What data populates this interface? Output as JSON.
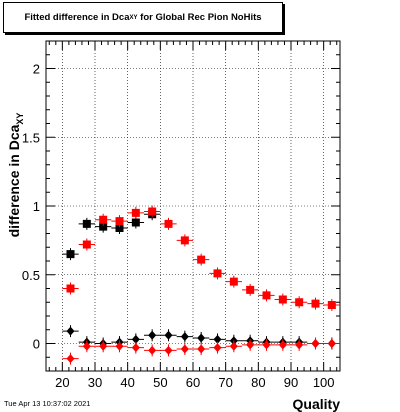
{
  "chart_data": {
    "type": "scatter",
    "title": "Fitted difference in Dca",
    "title_subscript": "XY",
    "title_suffix": " for Global Rec Pion NoHits",
    "xlabel": "Quality",
    "ylabel": "difference in Dca",
    "ylabel_subscript": "XY",
    "xlim": [
      15,
      105
    ],
    "ylim": [
      -0.2,
      2.2
    ],
    "x_ticks": [
      20,
      30,
      40,
      50,
      60,
      70,
      80,
      90,
      100
    ],
    "y_ticks": [
      0,
      0.5,
      1,
      1.5,
      2
    ],
    "grid": true,
    "legend": "none",
    "series": [
      {
        "marker": "square",
        "color": "#000000",
        "x": [
          22.5,
          27.5,
          32.5,
          37.5,
          42.5,
          47.5
        ],
        "y": [
          0.65,
          0.87,
          0.85,
          0.84,
          0.88,
          0.94
        ]
      },
      {
        "marker": "square",
        "color": "#ff0000",
        "x": [
          22.5,
          27.5,
          32.5,
          37.5,
          42.5,
          47.5,
          52.5,
          57.5,
          62.5,
          67.5,
          72.5,
          77.5,
          82.5,
          87.5,
          92.5,
          97.5,
          102.5
        ],
        "y": [
          0.4,
          0.72,
          0.9,
          0.89,
          0.95,
          0.96,
          0.87,
          0.75,
          0.61,
          0.51,
          0.45,
          0.39,
          0.35,
          0.32,
          0.3,
          0.29,
          0.28
        ]
      },
      {
        "marker": "diamond",
        "color": "#000000",
        "x": [
          22.5,
          27.5,
          32.5,
          37.5,
          42.5,
          47.5,
          52.5,
          57.5,
          62.5,
          67.5,
          72.5,
          77.5,
          82.5,
          87.5,
          92.5,
          97.5,
          102.5
        ],
        "y": [
          0.09,
          0.01,
          0.0,
          0.01,
          0.03,
          0.06,
          0.06,
          0.05,
          0.04,
          0.03,
          0.02,
          0.02,
          0.01,
          0.01,
          0.01,
          0.0,
          0.0
        ]
      },
      {
        "marker": "diamond",
        "color": "#ff0000",
        "x": [
          22.5,
          27.5,
          32.5,
          37.5,
          42.5,
          47.5,
          52.5,
          57.5,
          62.5,
          67.5,
          72.5,
          77.5,
          82.5,
          87.5,
          92.5,
          97.5,
          102.5
        ],
        "y": [
          -0.11,
          -0.02,
          -0.02,
          -0.02,
          -0.03,
          -0.05,
          -0.05,
          -0.04,
          -0.04,
          -0.03,
          -0.02,
          -0.01,
          -0.01,
          -0.01,
          -0.01,
          0.0,
          0.0
        ]
      }
    ]
  },
  "footer": {
    "date": "Tue Apr 13 10:37:02 2021"
  }
}
